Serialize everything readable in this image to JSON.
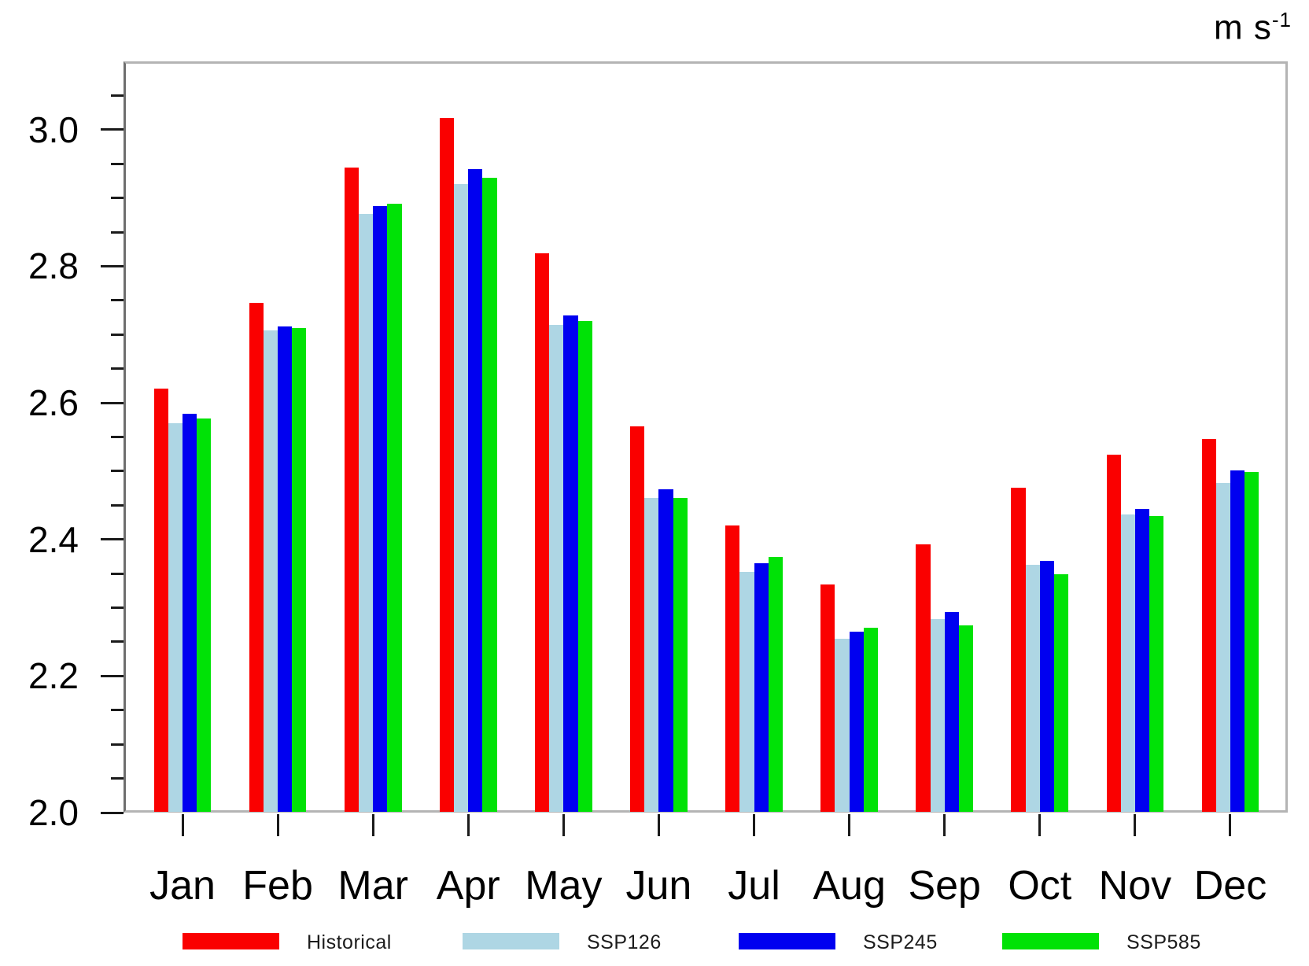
{
  "unit": {
    "base": "m s",
    "exponent": "-1"
  },
  "chart_data": {
    "type": "bar",
    "title": "",
    "xlabel": "",
    "ylabel": "m s-1",
    "categories": [
      "Jan",
      "Feb",
      "Mar",
      "Apr",
      "May",
      "Jun",
      "Jul",
      "Aug",
      "Sep",
      "Oct",
      "Nov",
      "Dec"
    ],
    "series": [
      {
        "name": "Historical",
        "color": "#fa0000",
        "values": [
          2.621,
          2.746,
          2.944,
          3.017,
          2.819,
          2.566,
          2.42,
          2.334,
          2.393,
          2.476,
          2.524,
          2.547
        ]
      },
      {
        "name": "SSP126",
        "color": "#aed6e4",
        "values": [
          2.57,
          2.706,
          2.876,
          2.92,
          2.714,
          2.461,
          2.353,
          2.255,
          2.283,
          2.363,
          2.437,
          2.483
        ]
      },
      {
        "name": "SSP245",
        "color": "#0000f0",
        "values": [
          2.584,
          2.712,
          2.888,
          2.942,
          2.728,
          2.473,
          2.365,
          2.265,
          2.294,
          2.369,
          2.445,
          2.501
        ]
      },
      {
        "name": "SSP585",
        "color": "#00e206",
        "values": [
          2.577,
          2.709,
          2.891,
          2.929,
          2.72,
          2.461,
          2.374,
          2.271,
          2.274,
          2.349,
          2.434,
          2.499
        ]
      }
    ],
    "ylim": [
      2.0,
      3.1
    ],
    "yticks_major": [
      2.0,
      2.2,
      2.4,
      2.6,
      2.8,
      3.0
    ],
    "ytick_minor_step": 0.05,
    "ytick_label_format": "one_decimal",
    "grid": false,
    "legend_position": "bottom"
  }
}
